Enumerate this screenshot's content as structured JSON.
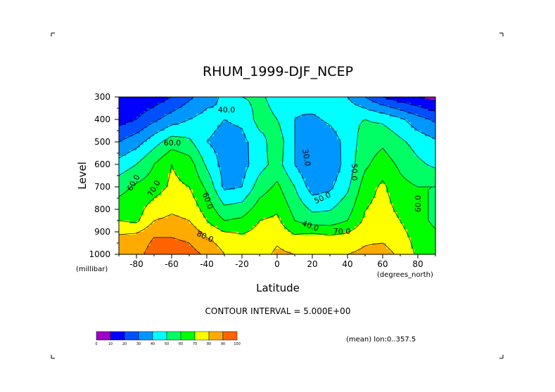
{
  "chart_data": {
    "type": "heatmap",
    "title": "RHUM_1999-DJF_NCEP",
    "xlabel": "Latitude",
    "ylabel": "Level",
    "x_unit_label": "(degrees_north)",
    "y_unit_label": "(millibar)",
    "xlim": [
      -90,
      90
    ],
    "ylim": [
      1000,
      300
    ],
    "x_ticks": [
      "-80",
      "-60",
      "-40",
      "-20",
      "0",
      "20",
      "40",
      "60",
      "80"
    ],
    "y_ticks": [
      "300",
      "400",
      "500",
      "600",
      "700",
      "800",
      "900",
      "1000"
    ],
    "x": [
      -90,
      -80,
      -70,
      -60,
      -50,
      -40,
      -30,
      -20,
      -10,
      0,
      10,
      20,
      30,
      40,
      50,
      60,
      70,
      80,
      90
    ],
    "y": [
      1000,
      925,
      850,
      700,
      600,
      500,
      400,
      300
    ],
    "z": [
      [
        88,
        86,
        95,
        96,
        94,
        88,
        80,
        78,
        76,
        82,
        80,
        78,
        78,
        80,
        82,
        84,
        78,
        68,
        66
      ],
      [
        82,
        84,
        90,
        90,
        88,
        80,
        75,
        72,
        74,
        78,
        72,
        75,
        72,
        74,
        78,
        78,
        74,
        66,
        62
      ],
      [
        70,
        68,
        80,
        82,
        80,
        70,
        60,
        62,
        70,
        72,
        60,
        55,
        55,
        60,
        72,
        75,
        70,
        63,
        58
      ],
      [
        56,
        62,
        65,
        72,
        70,
        58,
        38,
        40,
        55,
        62,
        50,
        35,
        38,
        48,
        65,
        72,
        63,
        60,
        60
      ],
      [
        44,
        50,
        60,
        70,
        65,
        48,
        36,
        36,
        46,
        54,
        40,
        30,
        33,
        44,
        58,
        65,
        58,
        52,
        48
      ],
      [
        30,
        36,
        46,
        55,
        52,
        40,
        36,
        37,
        46,
        56,
        40,
        30,
        34,
        44,
        55,
        58,
        52,
        46,
        42
      ],
      [
        16,
        20,
        28,
        35,
        40,
        44,
        40,
        42,
        54,
        50,
        40,
        38,
        42,
        48,
        50,
        48,
        42,
        34,
        28
      ],
      [
        14,
        10,
        14,
        20,
        28,
        36,
        42,
        50,
        52,
        46,
        42,
        46,
        46,
        40,
        30,
        20,
        14,
        10,
        6
      ]
    ],
    "contour_labels": [
      "40.0",
      "60.0",
      "60.0",
      "70.0",
      "50.0",
      "80.0",
      "30.0",
      "50.0",
      "40.0",
      "60.0",
      "70.0",
      "60.0"
    ],
    "colorbar_values": [
      "0",
      "10",
      "20",
      "30",
      "40",
      "50",
      "60",
      "70",
      "80",
      "90",
      "100"
    ],
    "colorbar_colors": [
      "#a000c8",
      "#0000ff",
      "#0050ff",
      "#0096ff",
      "#00ffff",
      "#00ff64",
      "#00ff00",
      "#ffff00",
      "#ffaa00",
      "#ff6400",
      "#ff0000"
    ],
    "contour_interval_text": "CONTOUR INTERVAL = 5.000E+00",
    "mean_text": "(mean) lon:0..357.5"
  }
}
